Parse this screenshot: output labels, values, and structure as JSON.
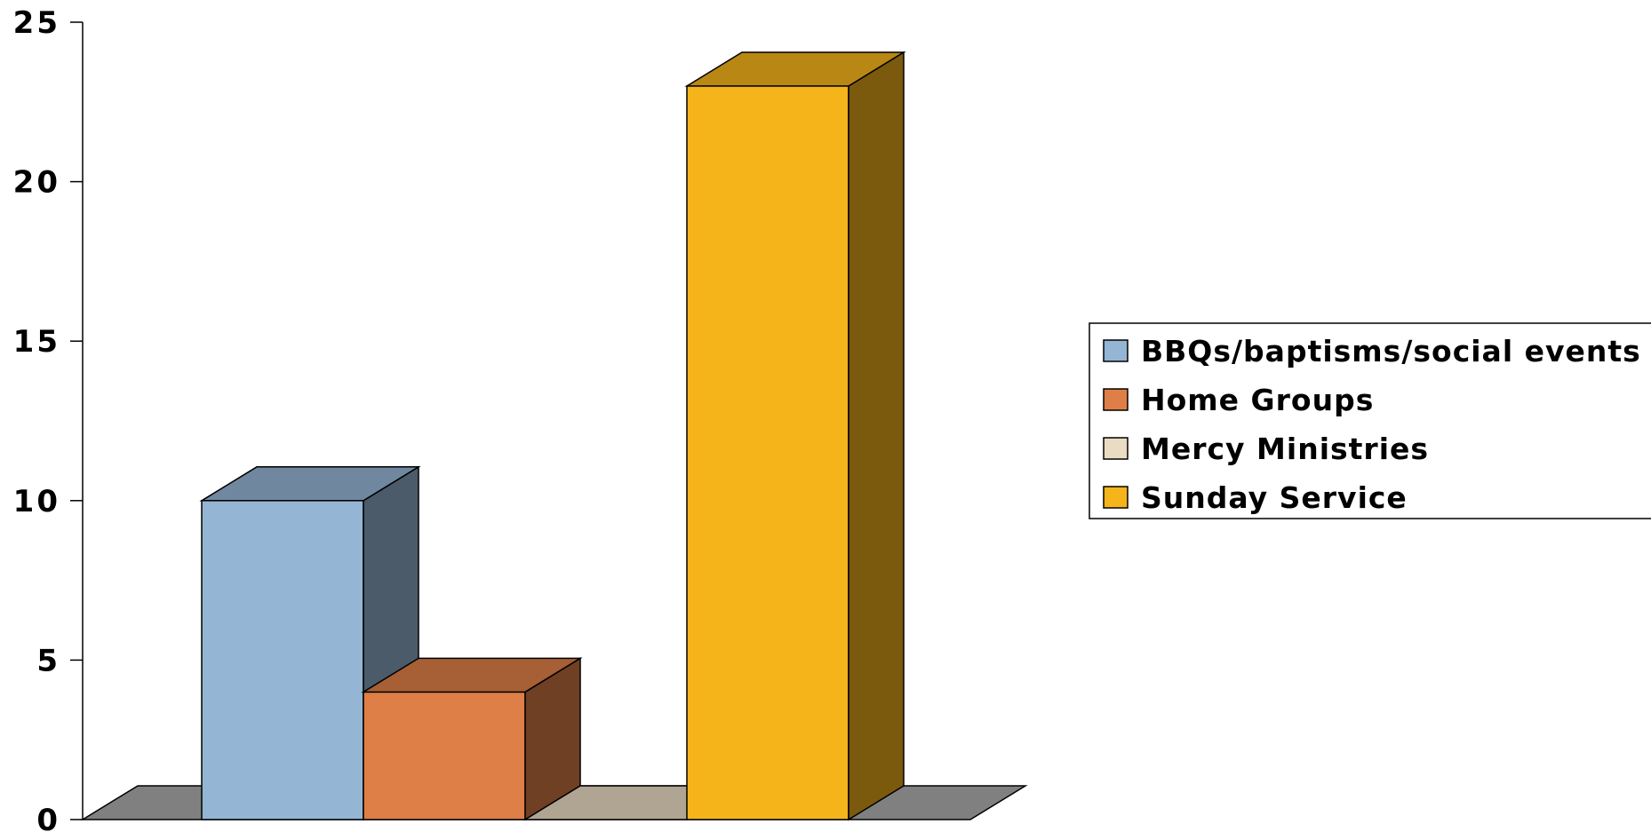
{
  "chart_data": {
    "type": "bar",
    "title": "",
    "xlabel": "",
    "ylabel": "",
    "ylim": [
      0,
      25
    ],
    "yticks": [
      0,
      5,
      10,
      15,
      20,
      25
    ],
    "ytick_labels": [
      "0",
      "5",
      "10",
      "15",
      "20",
      "25"
    ],
    "grid": false,
    "three_d": true,
    "legend_position": "right",
    "series": [
      {
        "name": "BBQs/baptisms/social events",
        "value": 10,
        "color": "#95b5d4"
      },
      {
        "name": "Home Groups",
        "value": 4,
        "color": "#de7f47"
      },
      {
        "name": "Mercy Ministries",
        "value": 0,
        "color": "#e9dcc3"
      },
      {
        "name": "Sunday Service",
        "value": 23,
        "color": "#f5b41a"
      }
    ],
    "floor_color": "#808080"
  }
}
